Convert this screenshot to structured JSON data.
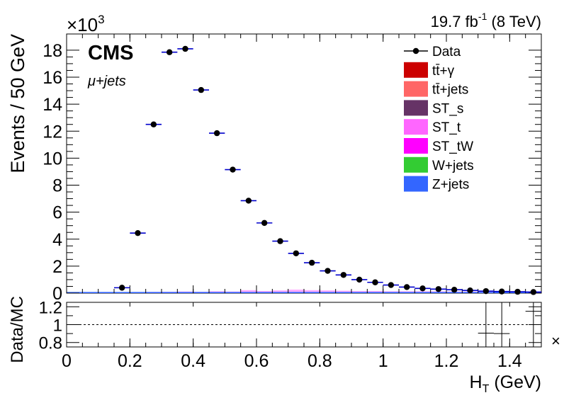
{
  "chart_data": {
    "type": "scatter",
    "top_panel": {
      "ylabel": "Events / 50 GeV",
      "y_multiplier": "×10",
      "y_multiplier_exp": "3",
      "ylim": [
        0,
        19.2
      ],
      "yticks": [
        0,
        2,
        4,
        6,
        8,
        10,
        12,
        14,
        16,
        18
      ],
      "ytick_labels": [
        "0",
        "2",
        "4",
        "6",
        "8",
        "10",
        "12",
        "14",
        "16",
        "18"
      ]
    },
    "ratio_panel": {
      "ylabel": "Data/MC",
      "ylim": [
        0.75,
        1.25
      ],
      "yticks": [
        0.8,
        1,
        1.2
      ],
      "ytick_labels": [
        "0.8",
        "1",
        "1.2"
      ],
      "reference_line": 1.0,
      "points": [
        {
          "x": 1.325,
          "y": 0.905
        },
        {
          "x": 1.375,
          "y": 0.9
        },
        {
          "x": 1.475,
          "y": 1.15
        }
      ],
      "overflow_marker": "×"
    },
    "xlabel": "H",
    "xlabel_sub": "T",
    "xlabel_unit": " (GeV)",
    "xlim": [
      0,
      1.5
    ],
    "xticks": [
      0,
      0.2,
      0.4,
      0.6,
      0.8,
      1,
      1.2,
      1.4
    ],
    "xtick_labels": [
      "0",
      "0.2",
      "0.4",
      "0.6",
      "0.8",
      "1",
      "1.2",
      "1.4"
    ],
    "bin_width": 0.05,
    "series": [
      {
        "name": "Data",
        "x": [
          0.175,
          0.225,
          0.275,
          0.325,
          0.375,
          0.425,
          0.475,
          0.525,
          0.575,
          0.625,
          0.675,
          0.725,
          0.775,
          0.825,
          0.875,
          0.925,
          0.975,
          1.025,
          1.075,
          1.125,
          1.175,
          1.225,
          1.275,
          1.325,
          1.375,
          1.425,
          1.475
        ],
        "y": [
          0.4,
          4.45,
          12.5,
          17.85,
          18.1,
          15.05,
          11.85,
          9.15,
          6.85,
          5.2,
          3.85,
          2.95,
          2.25,
          1.65,
          1.35,
          1.0,
          0.8,
          0.6,
          0.45,
          0.35,
          0.3,
          0.25,
          0.2,
          0.15,
          0.12,
          0.1,
          0.08
        ]
      }
    ],
    "mc_stack": {
      "x": [
        0.175,
        0.225,
        0.275,
        0.325,
        0.375,
        0.425,
        0.475,
        0.525,
        0.575,
        0.625,
        0.675,
        0.725,
        0.775,
        0.825,
        0.875,
        0.925,
        0.975,
        1.025,
        1.075,
        1.125,
        1.175,
        1.225,
        1.275,
        1.325,
        1.375,
        1.425,
        1.475
      ],
      "totals": [
        0.04,
        0.07,
        0.09,
        0.1,
        0.12,
        0.1,
        0.14,
        0.12,
        0.22,
        0.16,
        0.2,
        0.26,
        0.22,
        0.2,
        0.18,
        0.16,
        0.16,
        0.14,
        0.14,
        0.14,
        0.13,
        0.12,
        0.12,
        0.1,
        0.1,
        0.09,
        0.08
      ]
    },
    "legend": {
      "placement": "top-right",
      "entries": [
        {
          "label": "Data",
          "kind": "marker",
          "color": "#000000"
        },
        {
          "label": "tt̄+γ",
          "kind": "box",
          "color": "#cc0000"
        },
        {
          "label": "tt̄+jets",
          "kind": "box",
          "color": "#ff6666"
        },
        {
          "label": "ST_s",
          "kind": "box",
          "color": "#663366"
        },
        {
          "label": "ST_t",
          "kind": "box",
          "color": "#ff66ff"
        },
        {
          "label": "ST_tW",
          "kind": "box",
          "color": "#ff00ff"
        },
        {
          "label": "W+jets",
          "kind": "box",
          "color": "#33cc33"
        },
        {
          "label": "Z+jets",
          "kind": "box",
          "color": "#3366ff"
        }
      ]
    },
    "annotations": {
      "experiment": "CMS",
      "channel": "μ+jets",
      "lumi_value": "19.7 fb",
      "lumi_exp": "-1",
      "energy": " (8 TeV)"
    },
    "colors": {
      "data": "#000000",
      "error_bar": "#0000cc",
      "mc_line": "#3366ff"
    }
  }
}
